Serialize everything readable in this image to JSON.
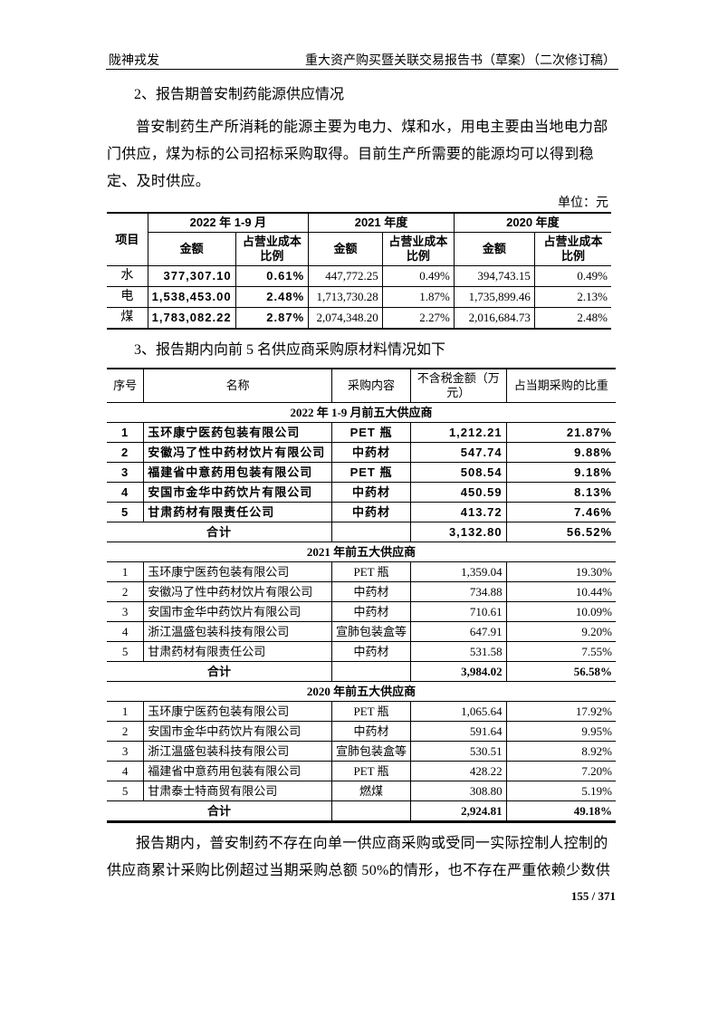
{
  "header": {
    "left": "陇神戎发",
    "right": "重大资产购买暨关联交易报告书（草案）（二次修订稿）"
  },
  "section2": {
    "title": "2、报告期普安制药能源供应情况",
    "paragraph": "普安制药生产所消耗的能源主要为电力、煤和水，用电主要由当地电力部门供应，煤为标的公司招标采购取得。目前生产所需要的能源均可以得到稳定、及时供应。",
    "unit": "单位：元",
    "table": {
      "item_header": "项目",
      "periods": [
        "2022 年 1-9 月",
        "2021 年度",
        "2020 年度"
      ],
      "sub_headers": [
        [
          "金额",
          "占营业成本比例"
        ],
        [
          "金额",
          "占营业成本比例"
        ],
        [
          "金额",
          "占营业成本比例"
        ]
      ],
      "rows": [
        {
          "item": "水",
          "values": [
            "377,307.10",
            "0.61%",
            "447,772.25",
            "0.49%",
            "394,743.15",
            "0.49%"
          ]
        },
        {
          "item": "电",
          "values": [
            "1,538,453.00",
            "2.48%",
            "1,713,730.28",
            "1.87%",
            "1,735,899.46",
            "2.13%"
          ]
        },
        {
          "item": "煤",
          "values": [
            "1,783,082.22",
            "2.87%",
            "2,074,348.20",
            "2.27%",
            "2,016,684.73",
            "2.48%"
          ]
        }
      ]
    }
  },
  "section3": {
    "title": "3、报告期内向前 5 名供应商采购原材料情况如下",
    "columns": [
      "序号",
      "名称",
      "采购内容",
      "不含税金额（万元）",
      "占当期采购的比重"
    ],
    "groups": [
      {
        "title": "2022 年 1-9 月前五大供应商",
        "rows": [
          [
            "1",
            "玉环康宁医药包装有限公司",
            "PET 瓶",
            "1,212.21",
            "21.87%"
          ],
          [
            "2",
            "安徽冯了性中药材饮片有限公司",
            "中药材",
            "547.74",
            "9.88%"
          ],
          [
            "3",
            "福建省中意药用包装有限公司",
            "PET 瓶",
            "508.54",
            "9.18%"
          ],
          [
            "4",
            "安国市金华中药饮片有限公司",
            "中药材",
            "450.59",
            "8.13%"
          ],
          [
            "5",
            "甘肃药材有限责任公司",
            "中药材",
            "413.72",
            "7.46%"
          ]
        ],
        "total": {
          "label": "合计",
          "amount": "3,132.80",
          "ratio": "56.52%"
        }
      },
      {
        "title": "2021 年前五大供应商",
        "rows": [
          [
            "1",
            "玉环康宁医药包装有限公司",
            "PET 瓶",
            "1,359.04",
            "19.30%"
          ],
          [
            "2",
            "安徽冯了性中药材饮片有限公司",
            "中药材",
            "734.88",
            "10.44%"
          ],
          [
            "3",
            "安国市金华中药饮片有限公司",
            "中药材",
            "710.61",
            "10.09%"
          ],
          [
            "4",
            "浙江温盛包装科技有限公司",
            "宣肺包装盒等",
            "647.91",
            "9.20%"
          ],
          [
            "5",
            "甘肃药材有限责任公司",
            "中药材",
            "531.58",
            "7.55%"
          ]
        ],
        "total": {
          "label": "合计",
          "amount": "3,984.02",
          "ratio": "56.58%"
        }
      },
      {
        "title": "2020 年前五大供应商",
        "rows": [
          [
            "1",
            "玉环康宁医药包装有限公司",
            "PET 瓶",
            "1,065.64",
            "17.92%"
          ],
          [
            "2",
            "安国市金华中药饮片有限公司",
            "中药材",
            "591.64",
            "9.95%"
          ],
          [
            "3",
            "浙江温盛包装科技有限公司",
            "宣肺包装盒等",
            "530.51",
            "8.92%"
          ],
          [
            "4",
            "福建省中意药用包装有限公司",
            "PET 瓶",
            "428.22",
            "7.20%"
          ],
          [
            "5",
            "甘肃泰士特商贸有限公司",
            "燃煤",
            "308.80",
            "5.19%"
          ]
        ],
        "total": {
          "label": "合计",
          "amount": "2,924.81",
          "ratio": "49.18%"
        }
      }
    ]
  },
  "closing_paragraph": "报告期内，普安制药不存在向单一供应商采购或受同一实际控制人控制的供应商累计采购比例超过当期采购总额 50%的情形，也不存在严重依赖少数供",
  "page_number": "155 / 371"
}
